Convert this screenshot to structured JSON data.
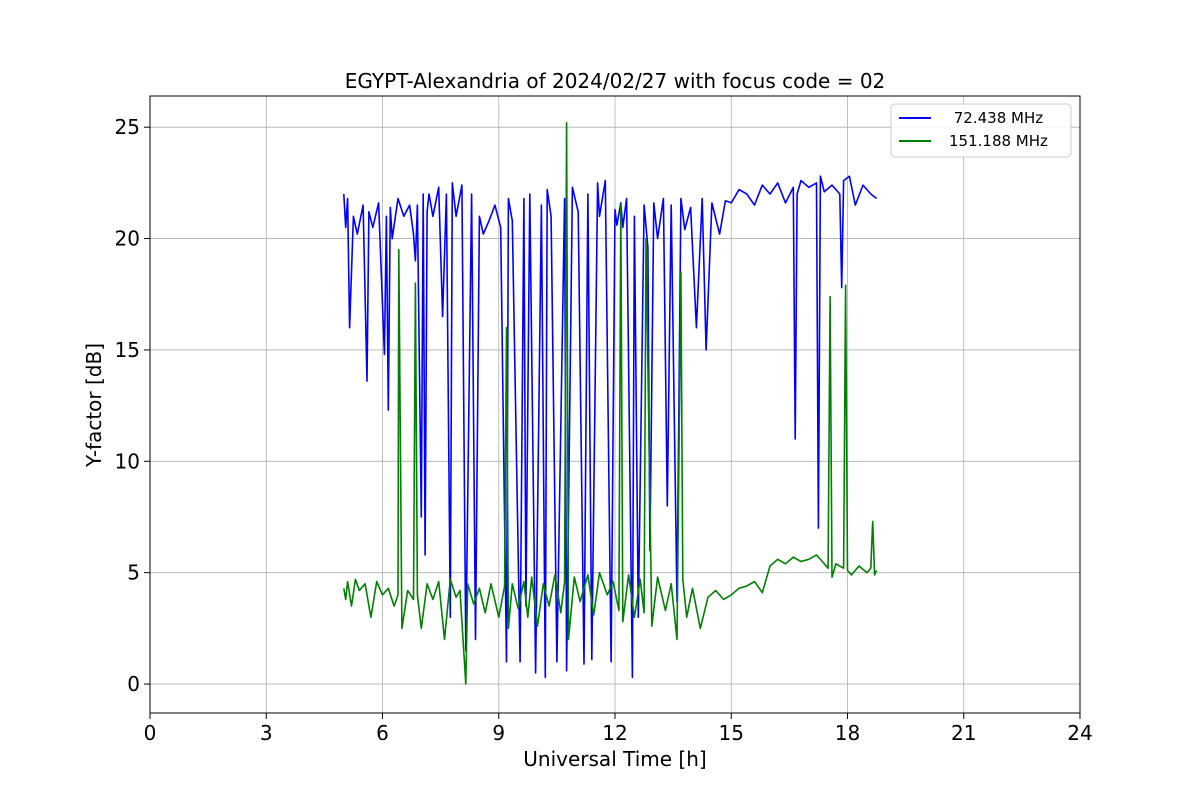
{
  "chart_data": {
    "type": "line",
    "title": "EGYPT-Alexandria of 2024/02/27 with focus code = 02",
    "xlabel": "Universal Time [h]",
    "ylabel": "Y-factor [dB]",
    "xlim": [
      0,
      24
    ],
    "ylim": [
      -1.3,
      26.4
    ],
    "xticks": [
      0,
      3,
      6,
      9,
      12,
      15,
      18,
      21,
      24
    ],
    "yticks": [
      0,
      5,
      10,
      15,
      20,
      25
    ],
    "xtick_labels": [
      "0",
      "3",
      "6",
      "9",
      "12",
      "15",
      "18",
      "21",
      "24"
    ],
    "ytick_labels": [
      "0",
      "5",
      "10",
      "15",
      "20",
      "25"
    ],
    "grid": true,
    "legend_position": "upper-right",
    "series": [
      {
        "name": " 72.438 MHz",
        "color": "#0000ff",
        "x": [
          5.0,
          5.05,
          5.1,
          5.15,
          5.25,
          5.35,
          5.5,
          5.6,
          5.65,
          5.75,
          5.9,
          6.05,
          6.1,
          6.15,
          6.2,
          6.25,
          6.4,
          6.55,
          6.7,
          6.8,
          6.85,
          6.9,
          7.0,
          7.05,
          7.1,
          7.15,
          7.2,
          7.3,
          7.45,
          7.55,
          7.65,
          7.75,
          7.8,
          7.9,
          8.05,
          8.15,
          8.3,
          8.4,
          8.5,
          8.6,
          8.75,
          8.9,
          9.05,
          9.2,
          9.25,
          9.35,
          9.55,
          9.65,
          9.7,
          9.8,
          9.95,
          10.1,
          10.2,
          10.25,
          10.35,
          10.5,
          10.7,
          10.75,
          10.9,
          11.05,
          11.2,
          11.3,
          11.4,
          11.55,
          11.6,
          11.75,
          11.9,
          12.0,
          12.05,
          12.15,
          12.2,
          12.3,
          12.45,
          12.5,
          12.6,
          12.75,
          12.85,
          12.9,
          13.0,
          13.1,
          13.25,
          13.35,
          13.45,
          13.6,
          13.7,
          13.8,
          13.95,
          14.1,
          14.25,
          14.35,
          14.5,
          14.7,
          14.85,
          15.0,
          15.2,
          15.4,
          15.6,
          15.8,
          16.0,
          16.2,
          16.4,
          16.6,
          16.65,
          16.7,
          16.8,
          17.0,
          17.2,
          17.25,
          17.3,
          17.4,
          17.6,
          17.8,
          17.85,
          17.9,
          18.05,
          18.2,
          18.4,
          18.6,
          18.75
        ],
        "y": [
          22.0,
          20.5,
          21.8,
          16.0,
          21.0,
          20.2,
          21.5,
          13.6,
          21.2,
          20.5,
          21.6,
          14.8,
          21.0,
          12.3,
          21.4,
          20.0,
          21.8,
          21.0,
          21.5,
          20.2,
          19.0,
          21.5,
          7.5,
          22.0,
          5.8,
          21.2,
          22.0,
          21.0,
          22.3,
          16.5,
          22.0,
          3.0,
          22.5,
          21.0,
          22.4,
          1.5,
          22.0,
          2.0,
          21.0,
          20.2,
          20.8,
          21.5,
          20.5,
          1.0,
          21.8,
          20.8,
          1.0,
          21.8,
          3.5,
          22.0,
          0.5,
          21.5,
          0.3,
          22.2,
          21.0,
          1.0,
          21.8,
          0.6,
          22.3,
          21.2,
          0.9,
          22.0,
          1.1,
          22.5,
          21.0,
          22.6,
          1.0,
          21.3,
          20.6,
          21.6,
          20.5,
          21.8,
          0.3,
          21.0,
          3.0,
          21.5,
          19.6,
          6.0,
          21.6,
          20.0,
          21.8,
          8.0,
          21.5,
          3.7,
          21.8,
          20.4,
          21.4,
          16.0,
          21.8,
          15.0,
          21.6,
          20.2,
          21.7,
          21.6,
          22.2,
          22.0,
          21.5,
          22.4,
          22.0,
          22.5,
          21.6,
          22.3,
          11.0,
          22.0,
          22.6,
          22.3,
          22.5,
          7.0,
          22.8,
          22.1,
          22.4,
          22.0,
          17.8,
          22.6,
          22.8,
          21.5,
          22.4,
          22.0,
          21.8
        ]
      },
      {
        "name": "151.188 MHz",
        "color": "#008000",
        "x": [
          5.0,
          5.05,
          5.1,
          5.2,
          5.3,
          5.4,
          5.55,
          5.7,
          5.85,
          6.0,
          6.15,
          6.3,
          6.4,
          6.42,
          6.5,
          6.65,
          6.8,
          6.85,
          6.9,
          7.0,
          7.15,
          7.3,
          7.45,
          7.6,
          7.75,
          7.9,
          8.0,
          8.15,
          8.2,
          8.35,
          8.5,
          8.65,
          8.8,
          9.0,
          9.15,
          9.2,
          9.25,
          9.35,
          9.5,
          9.65,
          9.75,
          9.85,
          10.0,
          10.15,
          10.3,
          10.45,
          10.6,
          10.7,
          10.75,
          10.8,
          10.95,
          11.1,
          11.3,
          11.45,
          11.6,
          11.8,
          11.95,
          12.1,
          12.15,
          12.2,
          12.35,
          12.5,
          12.65,
          12.75,
          12.8,
          12.95,
          13.1,
          13.3,
          13.45,
          13.6,
          13.7,
          13.75,
          13.85,
          14.0,
          14.2,
          14.4,
          14.6,
          14.8,
          15.0,
          15.2,
          15.4,
          15.6,
          15.8,
          16.0,
          16.2,
          16.4,
          16.6,
          16.8,
          17.0,
          17.2,
          17.35,
          17.5,
          17.55,
          17.6,
          17.7,
          17.9,
          17.95,
          18.0,
          18.1,
          18.3,
          18.5,
          18.6,
          18.65,
          18.7,
          18.75
        ],
        "y": [
          4.3,
          3.8,
          4.6,
          3.5,
          4.7,
          4.2,
          4.5,
          3.0,
          4.6,
          4.0,
          4.3,
          3.5,
          4.0,
          19.5,
          2.5,
          4.2,
          3.8,
          18.0,
          4.0,
          2.5,
          4.5,
          3.8,
          4.6,
          2.0,
          4.7,
          3.9,
          4.2,
          0.0,
          4.5,
          3.6,
          4.3,
          3.2,
          4.5,
          3.0,
          4.4,
          16.0,
          2.5,
          4.5,
          3.4,
          4.6,
          3.0,
          4.8,
          2.6,
          4.5,
          3.5,
          4.9,
          3.2,
          4.6,
          25.2,
          2.0,
          4.8,
          3.7,
          4.9,
          3.1,
          5.0,
          4.0,
          4.6,
          3.3,
          21.5,
          2.8,
          4.9,
          3.0,
          4.7,
          3.2,
          20.0,
          2.6,
          4.8,
          3.3,
          4.5,
          2.0,
          18.5,
          4.7,
          3.0,
          4.3,
          2.5,
          3.9,
          4.2,
          3.8,
          4.0,
          4.3,
          4.4,
          4.6,
          4.1,
          5.3,
          5.6,
          5.4,
          5.7,
          5.5,
          5.6,
          5.8,
          5.5,
          5.2,
          17.4,
          4.8,
          5.4,
          5.2,
          17.9,
          5.1,
          4.9,
          5.3,
          5.0,
          5.2,
          7.3,
          4.9,
          5.1
        ]
      }
    ]
  }
}
